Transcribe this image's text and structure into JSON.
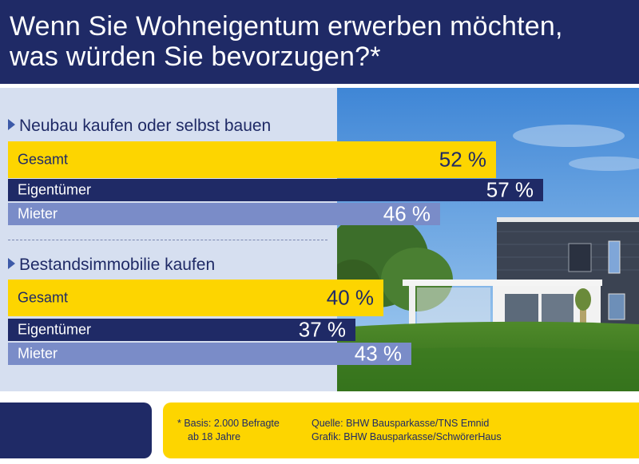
{
  "header": {
    "title_line1": "Wenn Sie Wohneigentum erwerben möchten,",
    "title_line2": "was würden Sie bevorzugen?*"
  },
  "chart_data": {
    "type": "bar",
    "orientation": "horizontal",
    "xlim": [
      0,
      100
    ],
    "groups": [
      {
        "title": "Neubau kaufen oder selbst bauen",
        "bars": [
          {
            "label": "Gesamt",
            "value": 52,
            "value_label": "52 %",
            "color": "#fdd500"
          },
          {
            "label": "Eigentümer",
            "value": 57,
            "value_label": "57 %",
            "color": "#1f2a66"
          },
          {
            "label": "Mieter",
            "value": 46,
            "value_label": "46 %",
            "color": "#7a8cc8"
          }
        ]
      },
      {
        "title": "Bestandsimmobilie kaufen",
        "bars": [
          {
            "label": "Gesamt",
            "value": 40,
            "value_label": "40 %",
            "color": "#fdd500"
          },
          {
            "label": "Eigentümer",
            "value": 37,
            "value_label": "37 %",
            "color": "#1f2a66"
          },
          {
            "label": "Mieter",
            "value": 43,
            "value_label": "43 %",
            "color": "#7a8cc8"
          }
        ]
      }
    ]
  },
  "footer": {
    "basis_line1": "* Basis: 2.000 Befragte",
    "basis_line2": "ab 18 Jahre",
    "source_line1": "Quelle: BHW Bausparkasse/TNS Emnid",
    "source_line2": "Grafik: BHW Bausparkasse/SchwörerHaus"
  },
  "colors": {
    "navy": "#1f2a66",
    "yellow": "#fdd500",
    "periwinkle": "#7a8cc8",
    "panel": "#d6dff0"
  }
}
